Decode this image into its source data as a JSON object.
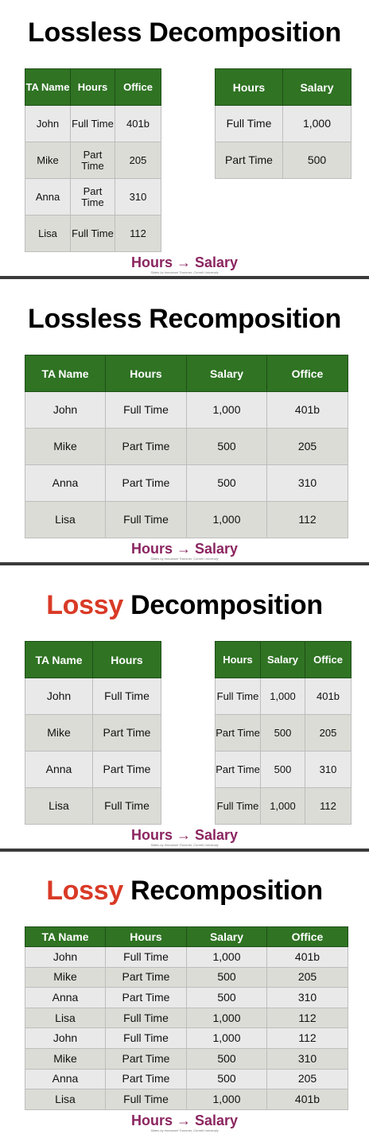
{
  "fd_text": "Hours → Salary",
  "credit_text": "Slides by Immanuel Trummer, Cornell University",
  "slide1": {
    "title": "Lossless Decomposition",
    "left_table": {
      "headers": [
        "TA Name",
        "Hours",
        "Office"
      ],
      "rows": [
        [
          "John",
          "Full Time",
          "401b"
        ],
        [
          "Mike",
          "Part Time",
          "205"
        ],
        [
          "Anna",
          "Part Time",
          "310"
        ],
        [
          "Lisa",
          "Full Time",
          "112"
        ]
      ]
    },
    "right_table": {
      "headers": [
        "Hours",
        "Salary"
      ],
      "rows": [
        [
          "Full Time",
          "1,000"
        ],
        [
          "Part Time",
          "500"
        ]
      ]
    }
  },
  "slide2": {
    "title": "Lossless Recomposition",
    "table": {
      "headers": [
        "TA Name",
        "Hours",
        "Salary",
        "Office"
      ],
      "rows": [
        [
          "John",
          "Full Time",
          "1,000",
          "401b"
        ],
        [
          "Mike",
          "Part Time",
          "500",
          "205"
        ],
        [
          "Anna",
          "Part Time",
          "500",
          "310"
        ],
        [
          "Lisa",
          "Full Time",
          "1,000",
          "112"
        ]
      ]
    }
  },
  "slide3": {
    "title_red": "Lossy",
    "title_rest": " Decomposition",
    "left_table": {
      "headers": [
        "TA Name",
        "Hours"
      ],
      "rows": [
        [
          "John",
          "Full Time"
        ],
        [
          "Mike",
          "Part Time"
        ],
        [
          "Anna",
          "Part Time"
        ],
        [
          "Lisa",
          "Full Time"
        ]
      ]
    },
    "right_table": {
      "headers": [
        "Hours",
        "Salary",
        "Office"
      ],
      "rows": [
        [
          "Full Time",
          "1,000",
          "401b"
        ],
        [
          "Part Time",
          "500",
          "205"
        ],
        [
          "Part Time",
          "500",
          "310"
        ],
        [
          "Full Time",
          "1,000",
          "112"
        ]
      ]
    }
  },
  "slide4": {
    "title_red": "Lossy",
    "title_rest": " Recomposition",
    "table": {
      "headers": [
        "TA Name",
        "Hours",
        "Salary",
        "Office"
      ],
      "rows": [
        [
          "John",
          "Full Time",
          "1,000",
          "401b"
        ],
        [
          "Mike",
          "Part Time",
          "500",
          "205"
        ],
        [
          "Anna",
          "Part Time",
          "500",
          "310"
        ],
        [
          "Lisa",
          "Full Time",
          "1,000",
          "112"
        ],
        [
          "John",
          "Full Time",
          "1,000",
          "112"
        ],
        [
          "Mike",
          "Part Time",
          "500",
          "310"
        ],
        [
          "Anna",
          "Part Time",
          "500",
          "205"
        ],
        [
          "Lisa",
          "Full Time",
          "1,000",
          "401b"
        ]
      ]
    }
  },
  "colors": {
    "header_green": "#2f7323",
    "lossy_red": "#d93a26",
    "fd_purple": "#8b2560",
    "row_light": "#e9e9e9",
    "row_dark": "#dcdcd6"
  }
}
